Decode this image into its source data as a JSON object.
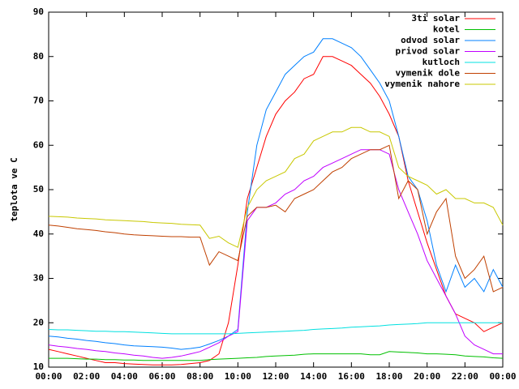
{
  "chart_data": {
    "type": "line",
    "ylabel": "teplota ve C",
    "x": [
      0,
      0.5,
      1,
      1.5,
      2,
      2.5,
      3,
      3.5,
      4,
      4.5,
      5,
      5.5,
      6,
      6.5,
      7,
      7.5,
      8,
      8.5,
      9,
      9.5,
      10,
      10.5,
      11,
      11.5,
      12,
      12.5,
      13,
      13.5,
      14,
      14.5,
      15,
      15.5,
      16,
      16.5,
      17,
      17.5,
      18,
      18.5,
      19,
      19.5,
      20,
      20.5,
      21,
      21.5,
      22,
      22.5,
      23,
      23.5,
      24
    ],
    "xlim": [
      0,
      24
    ],
    "xticks": [
      {
        "value": 0,
        "label": "00:00"
      },
      {
        "value": 2,
        "label": "02:00"
      },
      {
        "value": 4,
        "label": "04:00"
      },
      {
        "value": 6,
        "label": "06:00"
      },
      {
        "value": 8,
        "label": "08:00"
      },
      {
        "value": 10,
        "label": "10:00"
      },
      {
        "value": 12,
        "label": "12:00"
      },
      {
        "value": 14,
        "label": "14:00"
      },
      {
        "value": 16,
        "label": "16:00"
      },
      {
        "value": 18,
        "label": "18:00"
      },
      {
        "value": 20,
        "label": "20:00"
      },
      {
        "value": 22,
        "label": "22:00"
      },
      {
        "value": 24,
        "label": "00:00"
      }
    ],
    "ylim": [
      10,
      90
    ],
    "yticks": [
      10,
      20,
      30,
      40,
      50,
      60,
      70,
      80,
      90
    ],
    "legend": "top-right",
    "series": [
      {
        "name": "3ti solar",
        "color": "#ff0000",
        "values": [
          14,
          13.5,
          13,
          12.5,
          12,
          11.5,
          11,
          11,
          10.8,
          10.7,
          10.6,
          10.5,
          10.5,
          10.5,
          10.6,
          10.8,
          11,
          11.5,
          13,
          20,
          33,
          48,
          55,
          62,
          67,
          70,
          72,
          75,
          76,
          80,
          80,
          79,
          78,
          76,
          74,
          71,
          67,
          62,
          52,
          45,
          38,
          32,
          26,
          22,
          21,
          20,
          18,
          19,
          20
        ]
      },
      {
        "name": "kotel",
        "color": "#00c000",
        "values": [
          12,
          12,
          12,
          11.9,
          11.8,
          11.8,
          11.7,
          11.7,
          11.6,
          11.6,
          11.5,
          11.5,
          11.5,
          11.5,
          11.5,
          11.5,
          11.5,
          11.7,
          11.8,
          11.9,
          12,
          12.1,
          12.2,
          12.4,
          12.5,
          12.6,
          12.7,
          12.9,
          13,
          13,
          13,
          13,
          13,
          13,
          12.8,
          12.8,
          13.5,
          13.4,
          13.3,
          13.2,
          13,
          13,
          12.9,
          12.8,
          12.5,
          12.4,
          12.3,
          12.1,
          12
        ]
      },
      {
        "name": "odvod solar",
        "color": "#0080ff",
        "values": [
          17,
          16.8,
          16.5,
          16.3,
          16,
          15.8,
          15.5,
          15.3,
          15,
          14.8,
          14.7,
          14.6,
          14.5,
          14.3,
          14,
          14.2,
          14.5,
          15.2,
          16,
          17,
          18.5,
          45,
          60,
          68,
          72,
          76,
          78,
          80,
          81,
          84,
          84,
          83,
          82,
          80,
          77,
          74,
          70,
          62,
          53,
          50,
          43,
          33,
          27,
          33,
          28,
          30,
          27,
          32,
          28
        ]
      },
      {
        "name": "privod solar",
        "color": "#c000ff",
        "values": [
          15,
          14.7,
          14.5,
          14.2,
          14,
          13.7,
          13.5,
          13.2,
          13,
          12.7,
          12.5,
          12.2,
          12,
          12.2,
          12.5,
          13,
          13.5,
          14.5,
          15.5,
          17,
          18,
          43,
          46,
          46,
          47,
          49,
          50,
          52,
          53,
          55,
          56,
          57,
          58,
          59,
          59,
          59,
          58,
          50,
          45,
          40,
          34,
          30,
          26,
          22,
          17,
          15,
          14,
          13,
          13
        ]
      },
      {
        "name": "kutloch",
        "color": "#00e0e0",
        "values": [
          18.5,
          18.4,
          18.4,
          18.3,
          18.2,
          18.1,
          18.1,
          18,
          18,
          17.9,
          17.8,
          17.7,
          17.6,
          17.5,
          17.5,
          17.5,
          17.5,
          17.5,
          17.5,
          17.5,
          17.6,
          17.7,
          17.8,
          17.9,
          18,
          18.1,
          18.2,
          18.3,
          18.5,
          18.6,
          18.7,
          18.8,
          19,
          19.1,
          19.2,
          19.3,
          19.5,
          19.6,
          19.7,
          19.8,
          20,
          20,
          20,
          20,
          20,
          20,
          20,
          20,
          20
        ]
      },
      {
        "name": "vymenik dole",
        "color": "#c04000",
        "values": [
          42,
          41.8,
          41.5,
          41.2,
          41,
          40.8,
          40.5,
          40.3,
          40,
          39.8,
          39.7,
          39.6,
          39.5,
          39.4,
          39.4,
          39.3,
          39.3,
          33,
          36,
          35,
          34,
          44,
          46,
          46,
          46.5,
          45,
          48,
          49,
          50,
          52,
          54,
          55,
          57,
          58,
          59,
          59,
          60,
          48,
          52,
          50,
          40,
          45,
          48,
          35,
          30,
          32,
          35,
          27,
          28
        ]
      },
      {
        "name": "vymenik nahore",
        "color": "#c8c800",
        "values": [
          44,
          43.9,
          43.8,
          43.6,
          43.5,
          43.4,
          43.2,
          43.1,
          43,
          42.9,
          42.8,
          42.6,
          42.5,
          42.4,
          42.2,
          42.1,
          42,
          39,
          39.5,
          38,
          37,
          46,
          50,
          52,
          53,
          54,
          57,
          58,
          61,
          62,
          63,
          63,
          64,
          64,
          63,
          63,
          62,
          55,
          53,
          52,
          51,
          49,
          50,
          48,
          48,
          47,
          47,
          46,
          42
        ]
      }
    ]
  }
}
